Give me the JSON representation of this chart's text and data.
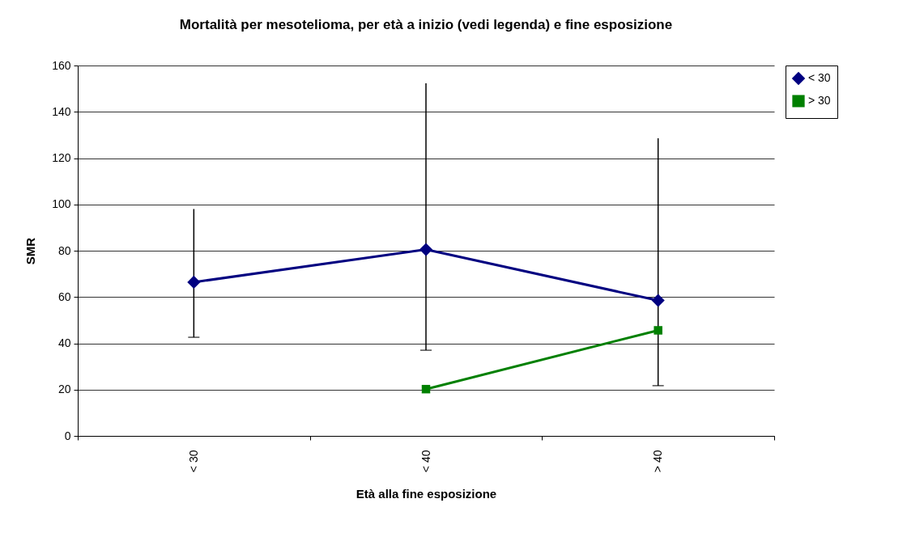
{
  "chart_data": {
    "type": "line",
    "title": "Mortalità per mesotelioma, per età a inizio (vedi legenda) e fine esposizione",
    "xlabel": "Età alla fine esposizione",
    "ylabel": "SMR",
    "categories": [
      "< 30",
      "< 40",
      "> 40"
    ],
    "series": [
      {
        "name": "< 30",
        "color": "#000080",
        "marker": "diamond",
        "values": [
          66.4,
          80.5,
          58.5
        ],
        "errors": [
          [
            42.6,
            98
          ],
          [
            37,
            152.3
          ],
          [
            21.7,
            128.6
          ]
        ]
      },
      {
        "name": "> 30",
        "color": "#008000",
        "marker": "square",
        "values": [
          null,
          20.2,
          45.6
        ]
      }
    ],
    "ylim": [
      0,
      160
    ],
    "yticks": [
      0,
      20,
      40,
      60,
      80,
      100,
      120,
      140,
      160
    ],
    "grid": "y",
    "legend": "right"
  }
}
